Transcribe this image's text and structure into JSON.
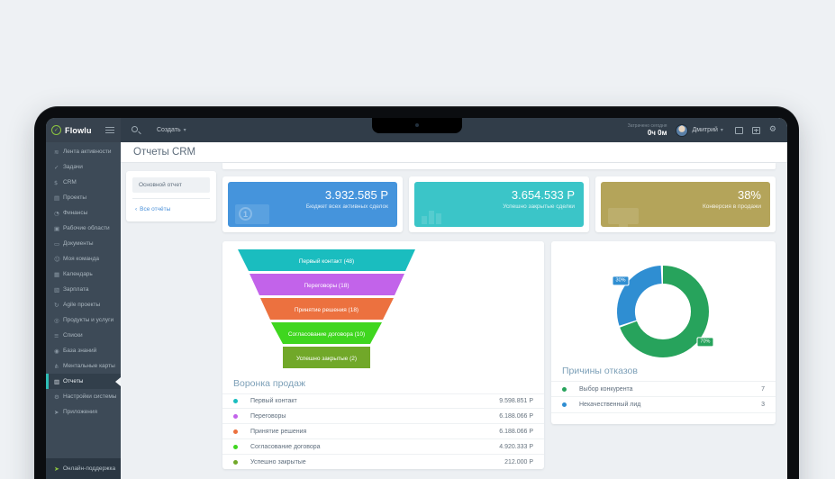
{
  "topbar": {
    "brand": "Flowlu",
    "create_label": "Создать",
    "time_caption": "Затрачено сегодня",
    "time_value": "0ч 0м",
    "user_name": "Дмитрий"
  },
  "sidebar": {
    "active_index": 15,
    "items": [
      {
        "key": "activity-feed",
        "label": "Лента активности",
        "glyph": "≋"
      },
      {
        "key": "tasks",
        "label": "Задачи",
        "glyph": "✓"
      },
      {
        "key": "crm",
        "label": "CRM",
        "glyph": "$"
      },
      {
        "key": "projects",
        "label": "Проекты",
        "glyph": "▤"
      },
      {
        "key": "finance",
        "label": "Финансы",
        "glyph": "◔"
      },
      {
        "key": "workspaces",
        "label": "Рабочие области",
        "glyph": "▣"
      },
      {
        "key": "documents",
        "label": "Документы",
        "glyph": "▭"
      },
      {
        "key": "team",
        "label": "Моя команда",
        "glyph": "☺"
      },
      {
        "key": "calendar",
        "label": "Календарь",
        "glyph": "▦"
      },
      {
        "key": "payroll",
        "label": "Зарплата",
        "glyph": "▧"
      },
      {
        "key": "agile-projects",
        "label": "Agile проекты",
        "glyph": "↻"
      },
      {
        "key": "products",
        "label": "Продукты и услуги",
        "glyph": "◎"
      },
      {
        "key": "lists",
        "label": "Списки",
        "glyph": "≡"
      },
      {
        "key": "knowledge-base",
        "label": "База знаний",
        "glyph": "◉"
      },
      {
        "key": "mind-maps",
        "label": "Ментальные карты",
        "glyph": "⋔"
      },
      {
        "key": "reports",
        "label": "Отчеты",
        "glyph": "▥"
      },
      {
        "key": "system-settings",
        "label": "Настройки системы",
        "glyph": "⚙"
      },
      {
        "key": "applications",
        "label": "Приложения",
        "glyph": "➤"
      }
    ],
    "support_label": "Онлайн-поддержка"
  },
  "page": {
    "title": "Отчеты CRM"
  },
  "report_nav": {
    "main_tab": "Основной отчет",
    "back_chevron": "‹",
    "back_link": "Все отчёты"
  },
  "stat_cards": [
    {
      "value": "3.932.585 Р",
      "label": "Бюджет всех активных сделок",
      "color": "#4594dc",
      "icon": "banknote"
    },
    {
      "value": "3.654.533 Р",
      "label": "Успешно закрытые сделки",
      "color": "#3bc5c8",
      "icon": "bar-chart"
    },
    {
      "value": "38%",
      "label": "Конверсия в продажи",
      "color": "#b4a45a",
      "icon": "monitor"
    }
  ],
  "chart_data": [
    {
      "type": "funnel",
      "title": "Воронка продаж",
      "stages": [
        {
          "label": "Первый контакт",
          "count": 48,
          "amount": "9.598.851 Р",
          "color": "#1abdbf"
        },
        {
          "label": "Переговоры",
          "count": 18,
          "amount": "6.188.066 Р",
          "color": "#c263ea"
        },
        {
          "label": "Принятие решения",
          "count": 18,
          "amount": "6.188.066 Р",
          "color": "#ec713f"
        },
        {
          "label": "Согласование договора",
          "count": 10,
          "amount": "4.920.333 Р",
          "color": "#3fd61f"
        },
        {
          "label": "Успешно закрытые",
          "count": 2,
          "amount": "212.000 Р",
          "color": "#71a829"
        }
      ]
    },
    {
      "type": "donut",
      "title": "Причины отказов",
      "legend_position": "bottom",
      "slices": [
        {
          "label": "Выбор конкурента",
          "value": 7,
          "pct": 70,
          "color": "#27a35c"
        },
        {
          "label": "Некачественный лид",
          "value": 3,
          "pct": 30,
          "color": "#2f8ed2"
        }
      ]
    }
  ]
}
